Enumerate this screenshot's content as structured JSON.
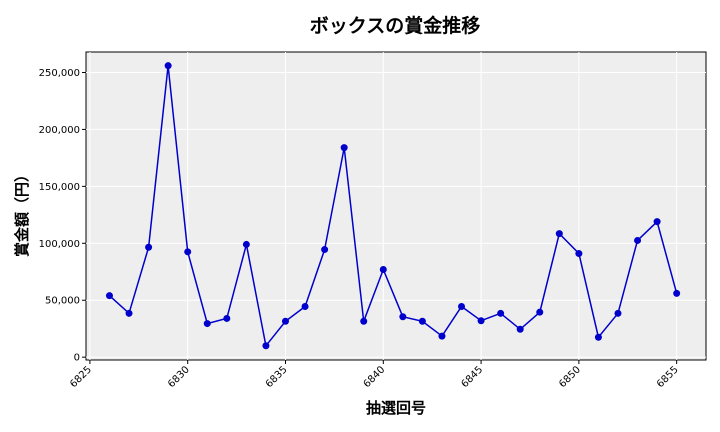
{
  "chart_data": {
    "type": "line",
    "title": "ボックスの賞金推移",
    "xlabel": "抽選回号",
    "ylabel": "賞金額（円）",
    "x": [
      6826,
      6827,
      6828,
      6829,
      6830,
      6831,
      6832,
      6833,
      6834,
      6835,
      6836,
      6837,
      6838,
      6839,
      6840,
      6841,
      6842,
      6843,
      6844,
      6845,
      6846,
      6847,
      6848,
      6849,
      6850,
      6851,
      6852,
      6853,
      6854,
      6855
    ],
    "series": [
      {
        "values": [
          54000,
          38500,
          96500,
          256000,
          92500,
          29500,
          34000,
          99000,
          10000,
          31500,
          44500,
          94500,
          184000,
          31500,
          77000,
          35500,
          31500,
          18500,
          44500,
          32000,
          38500,
          24500,
          39500,
          108500,
          91000,
          17500,
          38500,
          102500,
          119000,
          56000
        ],
        "color": "#0000cc"
      }
    ],
    "xlim": [
      6824.8,
      6856.5
    ],
    "ylim": [
      -2500,
      268000
    ],
    "xticks": [
      6825,
      6830,
      6835,
      6840,
      6845,
      6850,
      6855
    ],
    "xtick_labels": [
      "6825",
      "6830",
      "6835",
      "6840",
      "6845",
      "6850",
      "6855"
    ],
    "yticks": [
      0,
      50000,
      100000,
      150000,
      200000,
      250000
    ],
    "ytick_labels": [
      "0",
      "50,000",
      "100,000",
      "150,000",
      "200,000",
      "250,000"
    ],
    "grid": true,
    "plot_background": "#eeeeee",
    "grid_color": "#ffffff"
  }
}
